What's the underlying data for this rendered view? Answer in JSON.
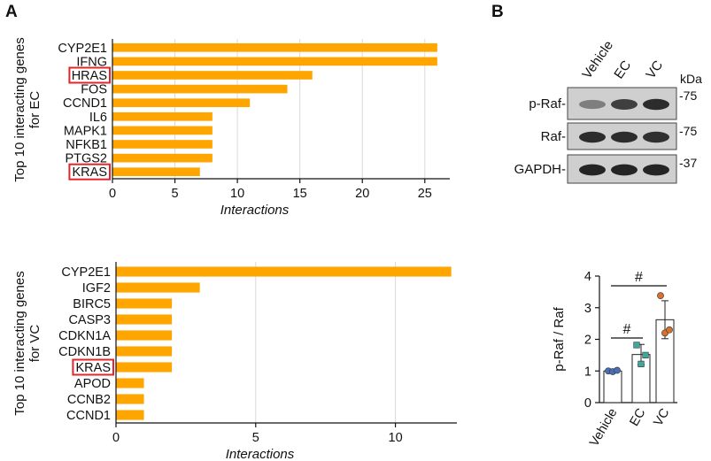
{
  "panel_labels": {
    "a": "A",
    "b": "B"
  },
  "colors": {
    "bar": "#FFA500",
    "highlight_box": "#E3262B",
    "blot_band": "#1a1a1a",
    "blot_bg": "#cfcfcf"
  },
  "chart_data": [
    {
      "type": "bar",
      "orientation": "horizontal",
      "panel": "A-top",
      "ylabel": "Top 10 interacting genes for EC",
      "xlabel": "Interactions",
      "categories": [
        "CYP2E1",
        "IFNG",
        "HRAS",
        "FOS",
        "CCND1",
        "IL6",
        "MAPK1",
        "NFKB1",
        "PTGS2",
        "KRAS"
      ],
      "values": [
        26,
        26,
        16,
        14,
        11,
        8,
        8,
        8,
        8,
        7
      ],
      "highlighted": [
        "HRAS",
        "KRAS"
      ],
      "xlim": [
        0,
        27
      ],
      "xticks": [
        0,
        5,
        10,
        15,
        20,
        25
      ],
      "grid": true
    },
    {
      "type": "bar",
      "orientation": "horizontal",
      "panel": "A-bottom",
      "ylabel": "Top 10 interacting genes for VC",
      "xlabel": "Interactions",
      "categories": [
        "CYP2E1",
        "IGF2",
        "BIRC5",
        "CASP3",
        "CDKN1A",
        "CDKN1B",
        "KRAS",
        "APOD",
        "CCNB2",
        "CCND1"
      ],
      "values": [
        12,
        3,
        2,
        2,
        2,
        2,
        2,
        1,
        1,
        1
      ],
      "highlighted": [
        "KRAS"
      ],
      "xlim": [
        0,
        12.2
      ],
      "xticks": [
        0,
        5,
        10
      ],
      "grid": true
    },
    {
      "type": "bar",
      "orientation": "vertical",
      "panel": "B-quant",
      "ylabel": "p-Raf / Raf",
      "categories": [
        "Vehicle",
        "EC",
        "VC"
      ],
      "values": [
        1.0,
        1.52,
        2.62
      ],
      "errors": [
        0.04,
        0.32,
        0.6
      ],
      "points": [
        [
          1.0,
          0.98,
          1.02
        ],
        [
          1.82,
          1.22,
          1.5
        ],
        [
          3.38,
          2.2,
          2.3
        ]
      ],
      "point_colors": [
        "#4A6FB5",
        "#3FA89A",
        "#D9702D"
      ],
      "ylim": [
        0,
        4
      ],
      "yticks": [
        0,
        1,
        2,
        3,
        4
      ],
      "significance": [
        {
          "from": "Vehicle",
          "to": "EC",
          "label": "#"
        },
        {
          "from": "Vehicle",
          "to": "VC",
          "label": "#"
        }
      ]
    }
  ],
  "western_blot": {
    "lanes": [
      "Vehicle",
      "EC",
      "VC"
    ],
    "unit": "kDa",
    "rows": [
      {
        "label": "p-Raf-",
        "marker": "-75",
        "intensity": [
          0.45,
          0.8,
          0.9
        ]
      },
      {
        "label": "Raf-",
        "marker": "-75",
        "intensity": [
          0.9,
          0.9,
          0.88
        ]
      },
      {
        "label": "GAPDH-",
        "marker": "-37",
        "intensity": [
          0.95,
          0.95,
          0.95
        ]
      }
    ]
  }
}
